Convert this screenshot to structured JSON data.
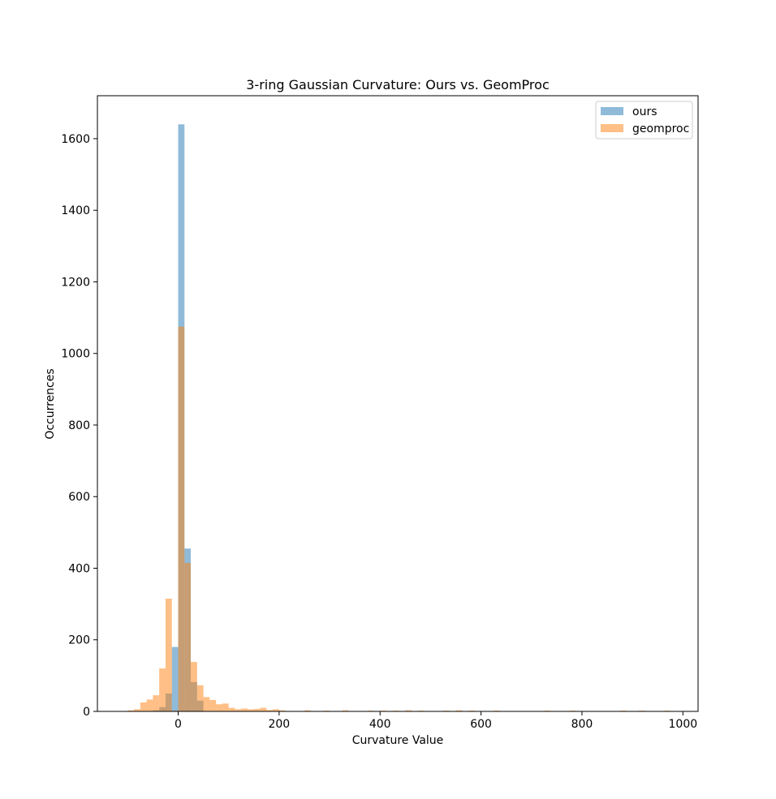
{
  "chart_data": {
    "type": "bar",
    "title": "3-ring Gaussian Curvature: Ours vs. GeomProc",
    "xlabel": "Curvature Value",
    "ylabel": "Occurrences",
    "xlim": [
      -160,
      1030
    ],
    "ylim": [
      0,
      1720
    ],
    "xticks": [
      0,
      200,
      400,
      600,
      800,
      1000
    ],
    "yticks": [
      0,
      200,
      400,
      600,
      800,
      1000,
      1200,
      1400,
      1600
    ],
    "xtick_labels": [
      "0",
      "200",
      "400",
      "600",
      "800",
      "1000"
    ],
    "ytick_labels": [
      "0",
      "200",
      "400",
      "600",
      "800",
      "1000",
      "1200",
      "1400",
      "1600"
    ],
    "bin_width": 12.5,
    "grid": false,
    "legend_position": "top-right",
    "series": [
      {
        "name": "ours",
        "color": "#1f77b4",
        "opacity": 0.5,
        "bin_starts": [
          -50,
          -37.5,
          -25,
          -12.5,
          0,
          12.5,
          25,
          37.5
        ],
        "values": [
          3,
          12,
          50,
          180,
          1640,
          455,
          82,
          30
        ]
      },
      {
        "name": "geomproc",
        "color": "#ff7f0e",
        "opacity": 0.5,
        "bin_starts": [
          -100,
          -87.5,
          -75,
          -62.5,
          -50,
          -37.5,
          -25,
          -12.5,
          0,
          12.5,
          25,
          37.5,
          50,
          62.5,
          75,
          87.5,
          100,
          112.5,
          125,
          137.5,
          150,
          162.5,
          175,
          187.5,
          200,
          250,
          287.5,
          325,
          375,
          400,
          425,
          450,
          475,
          525,
          550,
          575,
          625,
          725,
          775,
          875,
          912.5,
          962.5
        ],
        "values": [
          3,
          6,
          25,
          33,
          45,
          120,
          315,
          2,
          1075,
          415,
          138,
          73,
          40,
          32,
          20,
          22,
          10,
          6,
          8,
          6,
          7,
          10,
          4,
          6,
          3,
          3,
          2,
          3,
          2,
          2,
          2,
          3,
          2,
          2,
          3,
          2,
          2,
          2,
          2,
          2,
          2,
          2
        ]
      }
    ]
  }
}
